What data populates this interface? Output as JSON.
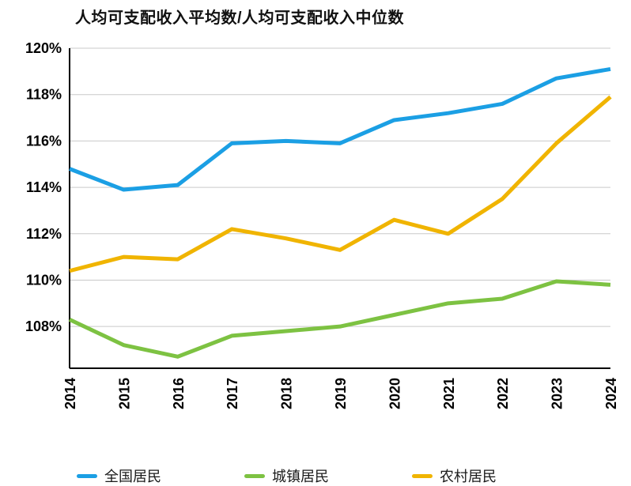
{
  "title": "人均可支配收入平均数/人均可支配收入中位数",
  "chart_data": {
    "type": "line",
    "title": "人均可支配收入平均数/人均可支配收入中位数",
    "x": [
      "2014",
      "2015",
      "2016",
      "2017",
      "2018",
      "2019",
      "2020",
      "2021",
      "2022",
      "2023",
      "2024"
    ],
    "series": [
      {
        "name": "全国居民",
        "color": "#1b9fe4",
        "values": [
          114.8,
          113.9,
          114.1,
          115.9,
          116.0,
          115.9,
          116.9,
          117.2,
          117.6,
          118.7,
          119.1
        ]
      },
      {
        "name": "城镇居民",
        "color": "#7dc242",
        "values": [
          108.3,
          107.2,
          106.7,
          107.6,
          107.8,
          108.0,
          108.5,
          109.0,
          109.2,
          109.95,
          109.8
        ]
      },
      {
        "name": "农村居民",
        "color": "#f0b400",
        "values": [
          110.4,
          111.0,
          110.9,
          112.2,
          111.8,
          111.3,
          112.6,
          112.0,
          113.5,
          115.9,
          117.9
        ]
      }
    ],
    "xlabel": "",
    "ylabel": "",
    "ylim": [
      106.2,
      120
    ],
    "yticks": [
      108,
      110,
      112,
      114,
      116,
      118,
      120
    ],
    "ytick_suffix": "%",
    "grid": true,
    "legend_position": "bottom"
  }
}
